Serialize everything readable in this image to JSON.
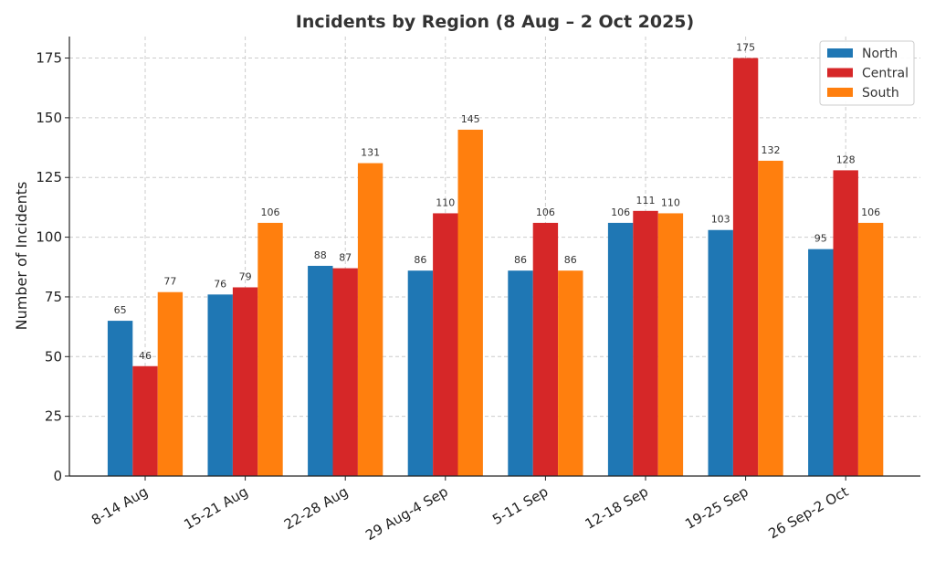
{
  "chart_data": {
    "type": "bar",
    "title": "Incidents by Region (8 Aug – 2 Oct 2025)",
    "xlabel": "",
    "ylabel": "Number of Incidents",
    "categories": [
      "8-14 Aug",
      "15-21 Aug",
      "22-28 Aug",
      "29 Aug-4 Sep",
      "5-11 Sep",
      "12-18 Sep",
      "19-25 Sep",
      "26 Sep-2 Oct"
    ],
    "series": [
      {
        "name": "North",
        "color": "#1f77b4",
        "values": [
          65,
          76,
          88,
          86,
          86,
          106,
          103,
          95
        ]
      },
      {
        "name": "Central",
        "color": "#d62728",
        "values": [
          46,
          79,
          87,
          110,
          106,
          111,
          175,
          128
        ]
      },
      {
        "name": "South",
        "color": "#ff7f0e",
        "values": [
          77,
          106,
          131,
          145,
          86,
          110,
          132,
          106
        ]
      }
    ],
    "ylim": [
      0,
      184
    ],
    "yticks": [
      0,
      25,
      50,
      75,
      100,
      125,
      150,
      175
    ],
    "grid": true,
    "legend": "top-right",
    "data_labels": true
  }
}
